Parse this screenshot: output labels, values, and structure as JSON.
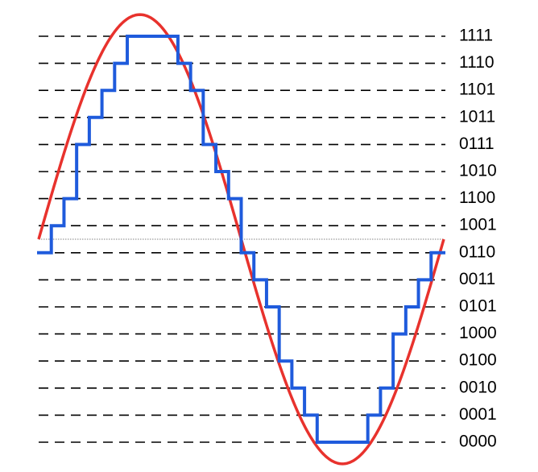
{
  "levels": [
    {
      "code": "1111"
    },
    {
      "code": "1110"
    },
    {
      "code": "1101"
    },
    {
      "code": "1011"
    },
    {
      "code": "0111"
    },
    {
      "code": "1010"
    },
    {
      "code": "1100"
    },
    {
      "code": "1001"
    },
    {
      "code": "0110"
    },
    {
      "code": "0011"
    },
    {
      "code": "0101"
    },
    {
      "code": "1000"
    },
    {
      "code": "0100"
    },
    {
      "code": "0010"
    },
    {
      "code": "0001"
    },
    {
      "code": "0000"
    }
  ],
  "colors": {
    "sine_wave": "#e8322d",
    "quantized_steps": "#1f5bdc",
    "grid": "#000000",
    "midline": "#9a9a9a"
  },
  "chart_data": {
    "type": "line",
    "description": "",
    "x": [
      0,
      1,
      2,
      3,
      4,
      5,
      6,
      7,
      8,
      9,
      10,
      11,
      12,
      13,
      14,
      15,
      16,
      17,
      18,
      19,
      20,
      21,
      22,
      23,
      24,
      25,
      26,
      27,
      28,
      29,
      30,
      31
    ],
    "series": [
      {
        "kind": "sine",
        "periods": 1,
        "phase_start": 0,
        "mid_level": 7.5,
        "amplitude": 8.3
      },
      {
        "kind": "quantized",
        "step_levels": [
          7,
          8,
          9,
          11,
          12,
          13,
          14,
          15,
          15,
          15,
          15,
          14,
          13,
          11,
          10,
          9,
          7,
          6,
          5,
          3,
          2,
          1,
          0,
          0,
          0,
          0,
          1,
          2,
          4,
          5,
          6,
          7
        ]
      }
    ],
    "ylim": [
      0,
      15
    ]
  }
}
